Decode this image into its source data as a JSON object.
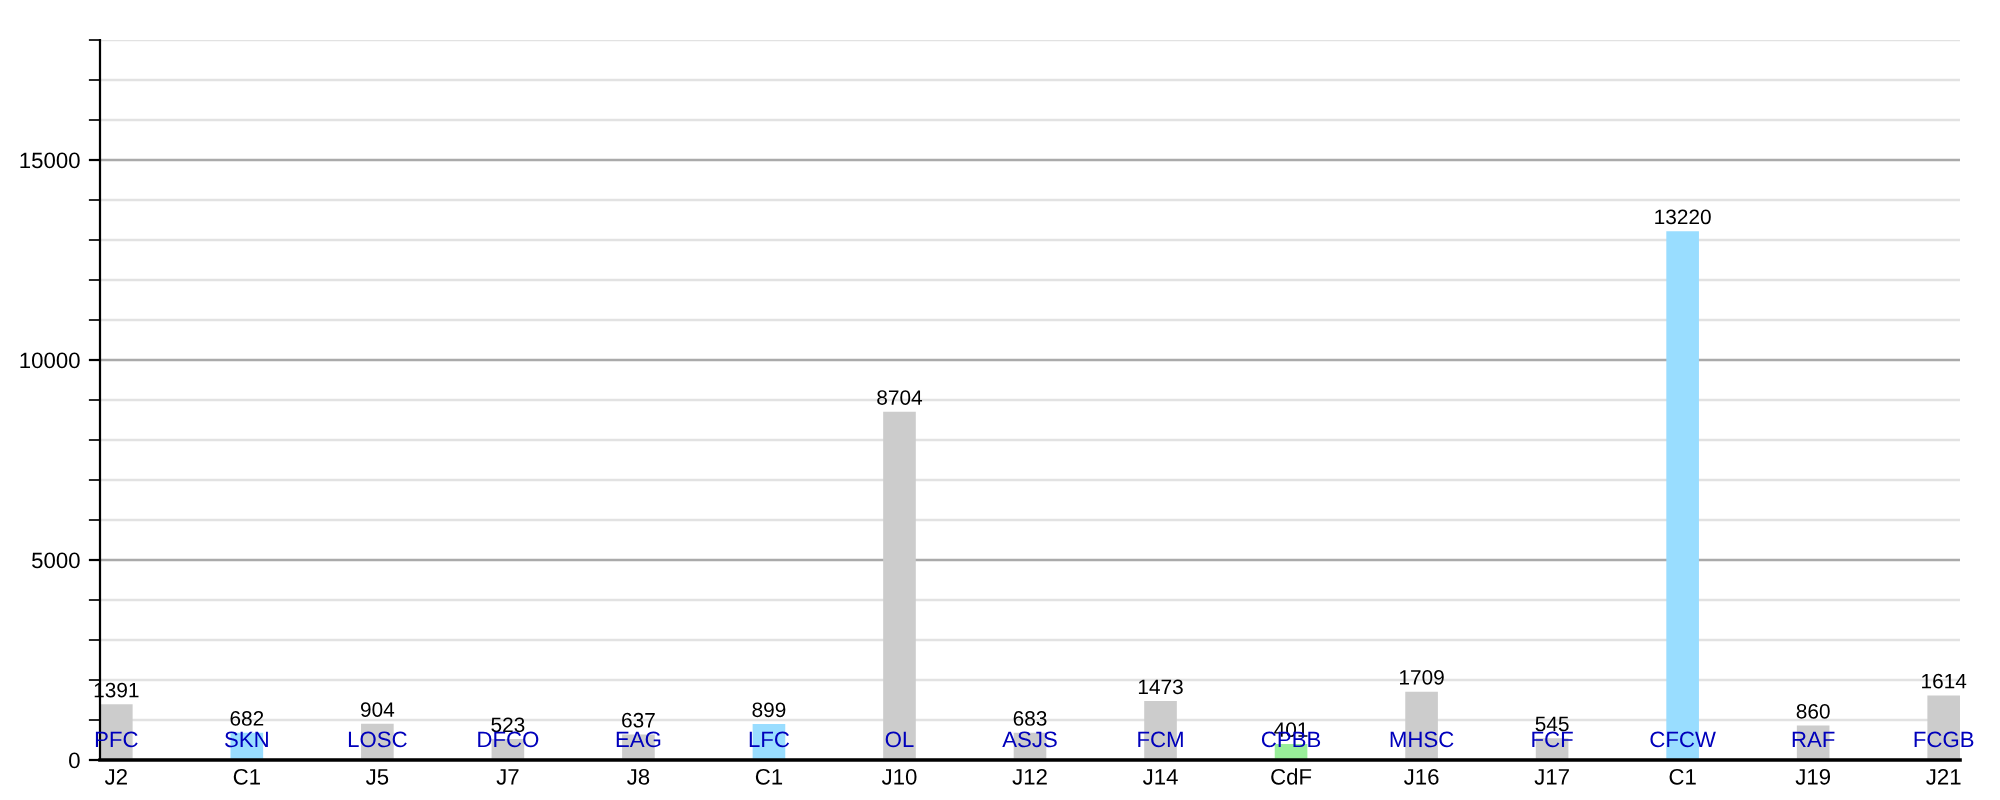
{
  "chart_data": {
    "type": "bar",
    "categories": [
      "J2",
      "C1",
      "J5",
      "J7",
      "J8",
      "C1",
      "J10",
      "J12",
      "J14",
      "CdF",
      "J16",
      "J17",
      "C1",
      "J19",
      "J21"
    ],
    "values": [
      1391,
      682,
      904,
      523,
      637,
      899,
      8704,
      683,
      1473,
      401,
      1709,
      545,
      13220,
      860,
      1614
    ],
    "colors": [
      "#cccccc",
      "#99ddff",
      "#cccccc",
      "#cccccc",
      "#cccccc",
      "#99ddff",
      "#cccccc",
      "#cccccc",
      "#cccccc",
      "#99ee99",
      "#cccccc",
      "#cccccc",
      "#99ddff",
      "#cccccc",
      "#cccccc"
    ],
    "ylim": [
      0,
      18000
    ],
    "yticks": [
      0,
      {
        "value": 1000,
        "label": null
      },
      {
        "value": 2000,
        "label": null
      },
      {
        "value": 3000,
        "label": null
      },
      {
        "value": 4000,
        "label": null
      },
      5000,
      {
        "value": 6000,
        "label": null
      },
      {
        "value": 7000,
        "label": null
      },
      {
        "value": 8000,
        "label": null
      },
      {
        "value": 9000,
        "label": null
      },
      10000,
      {
        "value": 11000,
        "label": null
      },
      {
        "value": 12000,
        "label": null
      },
      {
        "value": 13000,
        "label": null
      },
      {
        "value": 14000,
        "label": null
      },
      15000,
      {
        "value": 16000,
        "label": null
      },
      {
        "value": 17000,
        "label": null
      },
      {
        "value": 18000,
        "label": null
      }
    ],
    "grid": "y",
    "data_labels": true,
    "annotations": [
      "PFC",
      "SKN",
      "LOSC",
      "DFCO",
      "EAG",
      "LFC",
      "OL",
      "ASJS",
      "FCM",
      "CPBB",
      "MHSC",
      "FCF",
      "CFCW",
      "RAF",
      "FCGB"
    ]
  }
}
